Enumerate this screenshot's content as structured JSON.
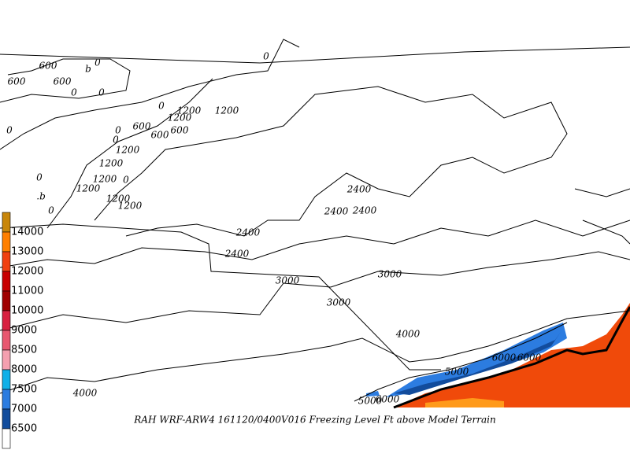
{
  "caption": "RAH WRF-ARW4 161120/0400V016  Freezing Level Ft above Model Terrain",
  "legend": {
    "labels": [
      "14000",
      "13000",
      "12000",
      "11000",
      "10000",
      "9000",
      "8500",
      "8000",
      "7500",
      "7000",
      "6500"
    ],
    "colors": [
      "#c8860a",
      "#ff7f00",
      "#f04010",
      "#c80000",
      "#a00000",
      "#d82040",
      "#e85870",
      "#f4a0b0",
      "#10b0e8",
      "#2c7ce0",
      "#124c9c",
      "#ffffff"
    ]
  },
  "contour_labels": [
    "600",
    "0",
    "600",
    "600",
    "b",
    "0",
    "0",
    "0",
    "0",
    "1200",
    "1200",
    "1200",
    "600",
    "600",
    "600",
    "0",
    "0",
    "1200",
    "1200",
    "0",
    "1200",
    "1200",
    "0",
    ".b",
    "0",
    "1200",
    "1200",
    "2400",
    "2400",
    "2400",
    "2400",
    "2400",
    "3000",
    "3000",
    "3000",
    "4000",
    "4000",
    "5000",
    "5000",
    "6000",
    "6000",
    "6000",
    "0"
  ]
}
